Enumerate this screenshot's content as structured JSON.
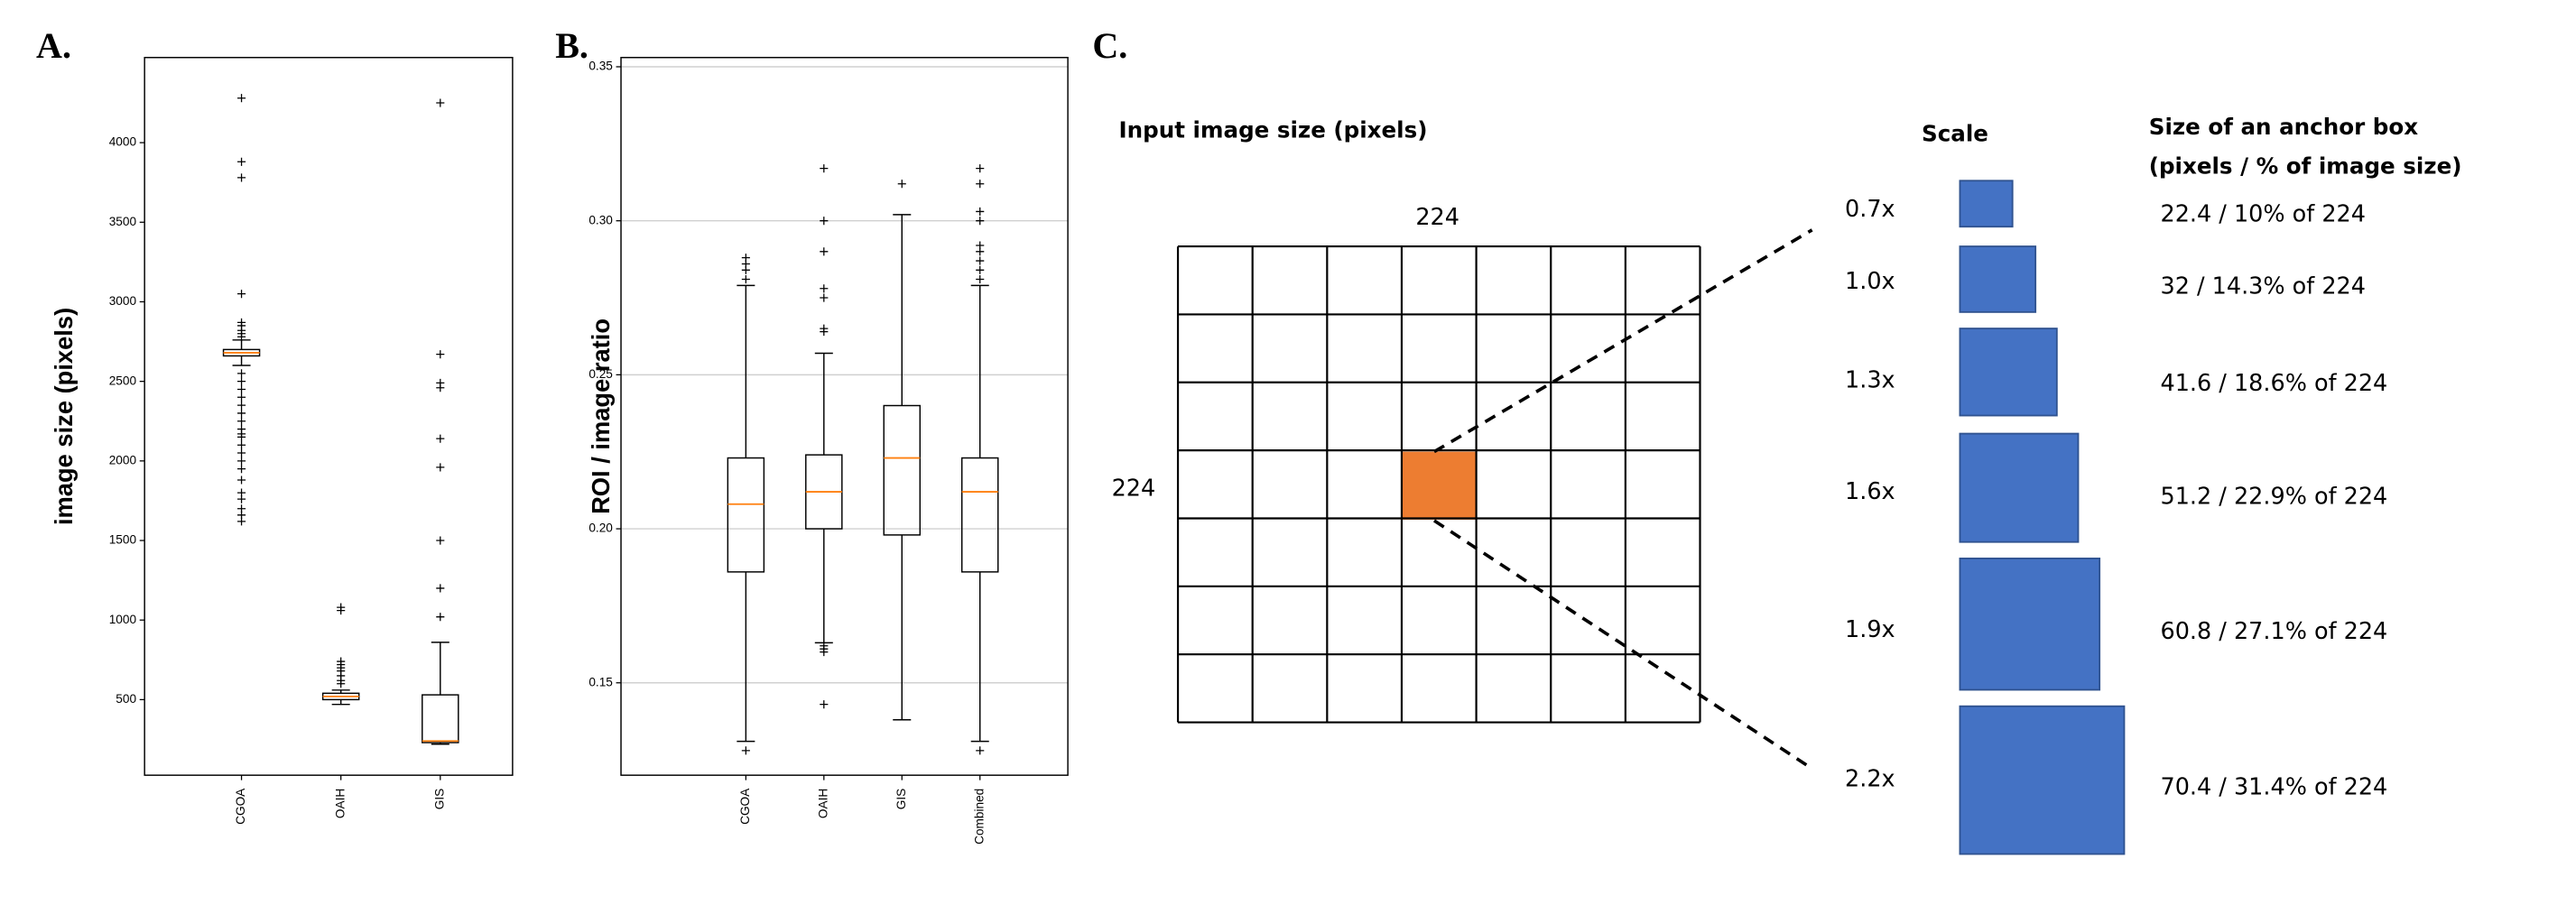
{
  "chart_data": [
    {
      "type": "box",
      "panel": "A.",
      "ylabel": "image size (pixels)",
      "categories": [
        "CGOA",
        "OAIH",
        "GIS"
      ],
      "boxes": [
        {
          "whislo": 2600,
          "q1": 2660,
          "median": 2680,
          "q3": 2700,
          "whishi": 2760,
          "fliers": [
            1620,
            1660,
            1700,
            1760,
            1800,
            1880,
            1950,
            2000,
            2050,
            2100,
            2150,
            2170,
            2200,
            2250,
            2300,
            2350,
            2400,
            2450,
            2500,
            2550,
            2780,
            2800,
            2820,
            2850,
            2870,
            3050,
            3780,
            3880,
            4280
          ]
        },
        {
          "whislo": 470,
          "q1": 500,
          "median": 520,
          "q3": 540,
          "whishi": 560,
          "fliers": [
            600,
            620,
            650,
            680,
            700,
            720,
            740,
            1060,
            1080
          ]
        },
        {
          "whislo": 220,
          "q1": 230,
          "median": 240,
          "q3": 530,
          "whishi": 860,
          "fliers": [
            1020,
            1200,
            1500,
            1960,
            2140,
            2460,
            2490,
            2670,
            4250
          ]
        }
      ],
      "ylim": [
        25,
        4535
      ],
      "yticks": [
        500,
        1000,
        1500,
        2000,
        2500,
        3000,
        3500,
        4000
      ],
      "grid": false,
      "box_color": "#000000",
      "median_color": "#ff7f0e"
    },
    {
      "type": "box",
      "panel": "B.",
      "ylabel": "ROI / image ratio",
      "categories": [
        "CGOA",
        "OAIH",
        "GIS",
        "Combined"
      ],
      "boxes": [
        {
          "whislo": 0.131,
          "q1": 0.186,
          "median": 0.208,
          "q3": 0.223,
          "whishi": 0.279,
          "fliers": [
            0.128,
            0.281,
            0.284,
            0.286,
            0.288
          ]
        },
        {
          "whislo": 0.163,
          "q1": 0.2,
          "median": 0.212,
          "q3": 0.224,
          "whishi": 0.257,
          "fliers": [
            0.143,
            0.16,
            0.161,
            0.162,
            0.264,
            0.265,
            0.275,
            0.278,
            0.29,
            0.3,
            0.317
          ]
        },
        {
          "whislo": 0.138,
          "q1": 0.198,
          "median": 0.223,
          "q3": 0.24,
          "whishi": 0.302,
          "fliers": [
            0.312
          ]
        },
        {
          "whislo": 0.131,
          "q1": 0.186,
          "median": 0.212,
          "q3": 0.223,
          "whishi": 0.279,
          "fliers": [
            0.128,
            0.281,
            0.284,
            0.287,
            0.29,
            0.292,
            0.3,
            0.303,
            0.312,
            0.317
          ]
        }
      ],
      "ylim": [
        0.12,
        0.353
      ],
      "yticks": [
        {
          "value": 0.15,
          "label": "0.15"
        },
        {
          "value": 0.2,
          "label": "0.20"
        },
        {
          "value": 0.25,
          "label": "0.25"
        },
        {
          "value": 0.3,
          "label": "0.30"
        },
        {
          "value": 0.35,
          "label": "0.35"
        }
      ],
      "grid": true,
      "box_color": "#000000",
      "median_color": "#ff7f0e"
    }
  ],
  "diagram": {
    "panel": "C.",
    "input_title": "Input image size (pixels)",
    "width_label": "224",
    "height_label": "224",
    "scale_header": "Scale",
    "size_header": [
      "Size of an anchor box",
      "(pixels / % of image size)"
    ],
    "rows": [
      {
        "scale": "0.7x",
        "size": "22.4 / 10% of 224"
      },
      {
        "scale": "1.0x",
        "size": "32 / 14.3% of 224"
      },
      {
        "scale": "1.3x",
        "size": "41.6 / 18.6% of 224"
      },
      {
        "scale": "1.6x",
        "size": "51.2 / 22.9% of 224"
      },
      {
        "scale": "1.9x",
        "size": "60.8 / 27.1% of 224"
      },
      {
        "scale": "2.2x",
        "size": "70.4 / 31.4% of 224"
      }
    ]
  }
}
